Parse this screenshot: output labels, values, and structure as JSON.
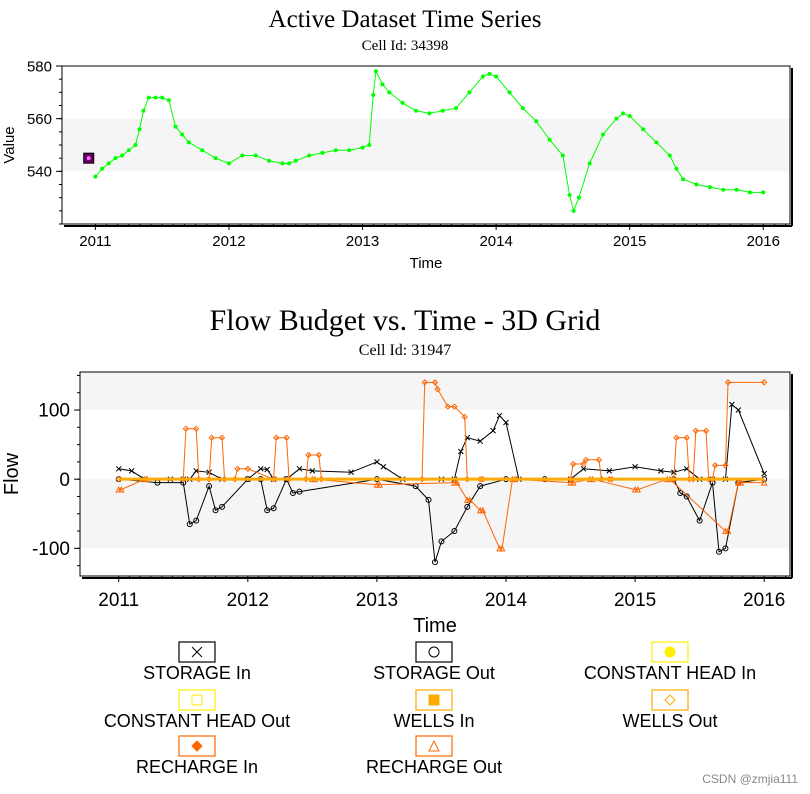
{
  "chart_data": [
    {
      "type": "line",
      "title": "Active Dataset Time Series",
      "subtitle": "Cell Id: 34398",
      "xlabel": "Time",
      "ylabel": "Value",
      "xlim": [
        2010.75,
        2016.2
      ],
      "ylim": [
        520,
        580
      ],
      "xticks": [
        2011,
        2012,
        2013,
        2014,
        2015,
        2016
      ],
      "yticks": [
        540,
        560,
        580
      ],
      "bands": [
        [
          540,
          560
        ]
      ],
      "series": [
        {
          "color": "#00ff00",
          "x": [
            2011.0,
            2011.05,
            2011.1,
            2011.15,
            2011.2,
            2011.25,
            2011.3,
            2011.33,
            2011.36,
            2011.4,
            2011.45,
            2011.5,
            2011.55,
            2011.6,
            2011.65,
            2011.7,
            2011.8,
            2011.9,
            2012.0,
            2012.1,
            2012.2,
            2012.3,
            2012.4,
            2012.45,
            2012.5,
            2012.6,
            2012.7,
            2012.8,
            2012.9,
            2013.0,
            2013.05,
            2013.08,
            2013.1,
            2013.15,
            2013.2,
            2013.3,
            2013.4,
            2013.5,
            2013.6,
            2013.7,
            2013.8,
            2013.9,
            2013.95,
            2014.0,
            2014.1,
            2014.2,
            2014.3,
            2014.4,
            2014.5,
            2014.55,
            2014.58,
            2014.62,
            2014.7,
            2014.8,
            2014.9,
            2014.95,
            2015.0,
            2015.1,
            2015.2,
            2015.3,
            2015.35,
            2015.4,
            2015.5,
            2015.6,
            2015.7,
            2015.8,
            2015.9,
            2016.0
          ],
          "y": [
            538,
            541,
            543,
            545,
            546,
            548,
            550,
            556,
            563,
            568,
            568,
            568,
            567,
            557,
            554,
            551,
            548,
            545,
            543,
            546,
            546,
            544,
            543,
            543,
            544,
            546,
            547,
            548,
            548,
            549,
            550,
            569,
            578,
            573,
            570,
            566,
            563,
            562,
            563,
            564,
            570,
            576,
            577,
            576,
            570,
            564,
            559,
            552,
            546,
            531,
            525,
            530,
            543,
            554,
            560,
            562,
            561,
            556,
            551,
            546,
            541,
            537,
            535,
            534,
            533,
            533,
            532,
            532
          ]
        }
      ],
      "markers": [
        {
          "x": 2010.95,
          "y": 545,
          "shape": "square"
        }
      ]
    },
    {
      "type": "line",
      "title": "Flow Budget vs. Time - 3D Grid",
      "subtitle": "Cell Id: 31947",
      "xlabel": "Time",
      "ylabel": "Flow",
      "xlim": [
        2010.7,
        2016.2
      ],
      "ylim": [
        -140,
        155
      ],
      "xticks": [
        2011,
        2012,
        2013,
        2014,
        2015,
        2016
      ],
      "yticks": [
        -100,
        0,
        100
      ],
      "bands": [
        [
          -100,
          0
        ],
        [
          100,
          155
        ]
      ],
      "series": [
        {
          "name": "STORAGE In",
          "color": "#000000",
          "marker": "x",
          "x": [
            2011.0,
            2011.1,
            2011.2,
            2011.4,
            2011.5,
            2011.55,
            2011.6,
            2011.7,
            2011.8,
            2012.0,
            2012.1,
            2012.15,
            2012.2,
            2012.3,
            2012.4,
            2012.5,
            2012.8,
            2013.0,
            2013.05,
            2013.2,
            2013.5,
            2013.6,
            2013.65,
            2013.7,
            2013.8,
            2013.9,
            2013.95,
            2014.0,
            2014.1,
            2014.5,
            2014.6,
            2014.8,
            2015.0,
            2015.2,
            2015.3,
            2015.4,
            2015.5,
            2015.6,
            2015.7,
            2015.75,
            2015.8,
            2016.0
          ],
          "y": [
            15,
            12,
            0,
            0,
            0,
            0,
            12,
            10,
            0,
            0,
            15,
            14,
            0,
            0,
            15,
            12,
            10,
            25,
            18,
            0,
            0,
            0,
            40,
            60,
            55,
            70,
            92,
            82,
            0,
            0,
            15,
            12,
            18,
            12,
            10,
            15,
            0,
            0,
            0,
            108,
            100,
            8
          ]
        },
        {
          "name": "STORAGE Out",
          "color": "#000000",
          "marker": "circle",
          "x": [
            2011.0,
            2011.3,
            2011.5,
            2011.55,
            2011.6,
            2011.7,
            2011.75,
            2011.8,
            2012.0,
            2012.1,
            2012.15,
            2012.2,
            2012.3,
            2012.35,
            2012.4,
            2013.0,
            2013.3,
            2013.4,
            2013.45,
            2013.5,
            2013.6,
            2013.7,
            2013.8,
            2014.0,
            2014.3,
            2015.3,
            2015.35,
            2015.4,
            2015.5,
            2015.6,
            2015.65,
            2015.7,
            2015.8,
            2016.0
          ],
          "y": [
            0,
            -5,
            -5,
            -65,
            -60,
            -10,
            -45,
            -40,
            0,
            0,
            -45,
            -42,
            0,
            -20,
            -18,
            0,
            -10,
            -30,
            -120,
            -90,
            -75,
            -40,
            -10,
            0,
            0,
            0,
            -20,
            -25,
            -60,
            -5,
            -105,
            -100,
            -5,
            0
          ]
        },
        {
          "name": "RECHARGE In",
          "color": "#ff6600",
          "marker": "diamond",
          "x": [
            2011.0,
            2011.5,
            2011.52,
            2011.6,
            2011.62,
            2011.7,
            2011.72,
            2011.8,
            2011.82,
            2011.9,
            2011.92,
            2012.0,
            2012.2,
            2012.22,
            2012.3,
            2012.32,
            2012.45,
            2012.47,
            2012.55,
            2012.57,
            2013.35,
            2013.37,
            2013.45,
            2013.47,
            2013.55,
            2013.6,
            2013.68,
            2013.7,
            2013.8,
            2013.82,
            2014.5,
            2014.52,
            2014.6,
            2014.62,
            2014.72,
            2014.74,
            2014.8,
            2014.82,
            2015.3,
            2015.32,
            2015.4,
            2015.42,
            2015.45,
            2015.47,
            2015.55,
            2015.57,
            2015.6,
            2015.62,
            2015.7,
            2015.72,
            2016.0
          ],
          "y": [
            0,
            0,
            73,
            73,
            0,
            0,
            60,
            60,
            0,
            0,
            15,
            15,
            0,
            60,
            60,
            0,
            0,
            35,
            35,
            0,
            0,
            140,
            140,
            130,
            105,
            105,
            90,
            0,
            0,
            0,
            0,
            22,
            22,
            28,
            28,
            0,
            0,
            0,
            0,
            60,
            60,
            0,
            0,
            70,
            70,
            0,
            0,
            20,
            20,
            140,
            140
          ]
        },
        {
          "name": "RECHARGE Out",
          "color": "#ff6600",
          "marker": "triangle",
          "x": [
            2011.0,
            2011.02,
            2011.2,
            2011.22,
            2012.5,
            2012.52,
            2013.0,
            2013.02,
            2013.6,
            2013.62,
            2013.7,
            2013.72,
            2013.8,
            2013.82,
            2013.95,
            2013.97,
            2014.05,
            2014.07,
            2014.5,
            2014.52,
            2014.65,
            2014.67,
            2015.0,
            2015.02,
            2015.25,
            2015.27,
            2015.7,
            2015.72,
            2015.8,
            2015.82,
            2016.0
          ],
          "y": [
            -15,
            -15,
            0,
            0,
            0,
            0,
            -8,
            -8,
            -5,
            -5,
            -30,
            -30,
            -45,
            -45,
            -100,
            -100,
            0,
            0,
            -5,
            -5,
            0,
            0,
            -15,
            -15,
            0,
            0,
            -75,
            -75,
            -5,
            -5,
            -5
          ]
        }
      ],
      "legend": {
        "placement": "bottom",
        "columns": 3,
        "entries": [
          {
            "label": "STORAGE In",
            "marker": "x",
            "color": "#000000"
          },
          {
            "label": "STORAGE Out",
            "marker": "circle",
            "color": "#000000"
          },
          {
            "label": "CONSTANT HEAD In",
            "marker": "circle-filled",
            "color": "#ffee00"
          },
          {
            "label": "CONSTANT HEAD Out",
            "marker": "square",
            "color": "#ffee00"
          },
          {
            "label": "WELLS In",
            "marker": "square-filled",
            "color": "#ffaa00"
          },
          {
            "label": "WELLS Out",
            "marker": "diamond",
            "color": "#ffaa00"
          },
          {
            "label": "RECHARGE In",
            "marker": "diamond-filled",
            "color": "#ff6600"
          },
          {
            "label": "RECHARGE Out",
            "marker": "triangle",
            "color": "#ff6600"
          }
        ]
      }
    }
  ],
  "watermark": "CSDN @zmjia111"
}
